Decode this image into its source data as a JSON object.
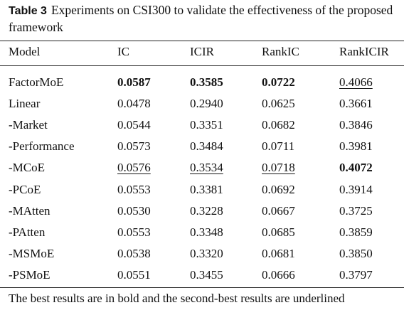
{
  "caption": {
    "label": "Table 3",
    "text": "Experiments on CSI300 to validate the effectiveness of the proposed framework"
  },
  "table": {
    "header": [
      "Model",
      "IC",
      "ICIR",
      "RankIC",
      "RankICIR"
    ],
    "rows": [
      [
        "FactorMoE",
        {
          "text": "0.0587",
          "style": "bold"
        },
        {
          "text": "0.3585",
          "style": "bold"
        },
        {
          "text": "0.0722",
          "style": "bold"
        },
        {
          "text": "0.4066",
          "style": "underline"
        }
      ],
      [
        "Linear",
        "0.0478",
        "0.2940",
        "0.0625",
        "0.3661"
      ],
      [
        "-Market",
        "0.0544",
        "0.3351",
        "0.0682",
        "0.3846"
      ],
      [
        "-Performance",
        "0.0573",
        "0.3484",
        "0.0711",
        "0.3981"
      ],
      [
        "-MCoE",
        {
          "text": "0.0576",
          "style": "underline"
        },
        {
          "text": "0.3534",
          "style": "underline"
        },
        {
          "text": "0.0718",
          "style": "underline"
        },
        {
          "text": "0.4072",
          "style": "bold"
        }
      ],
      [
        "-PCoE",
        "0.0553",
        "0.3381",
        "0.0692",
        "0.3914"
      ],
      [
        "-MAtten",
        "0.0530",
        "0.3228",
        "0.0667",
        "0.3725"
      ],
      [
        "-PAtten",
        "0.0553",
        "0.3348",
        "0.0685",
        "0.3859"
      ],
      [
        "-MSMoE",
        "0.0538",
        "0.3320",
        "0.0681",
        "0.3850"
      ],
      [
        "-PSMoE",
        "0.0551",
        "0.3455",
        "0.0666",
        "0.3797"
      ]
    ],
    "footnote": "The best results are in bold and the second-best results are underlined"
  }
}
